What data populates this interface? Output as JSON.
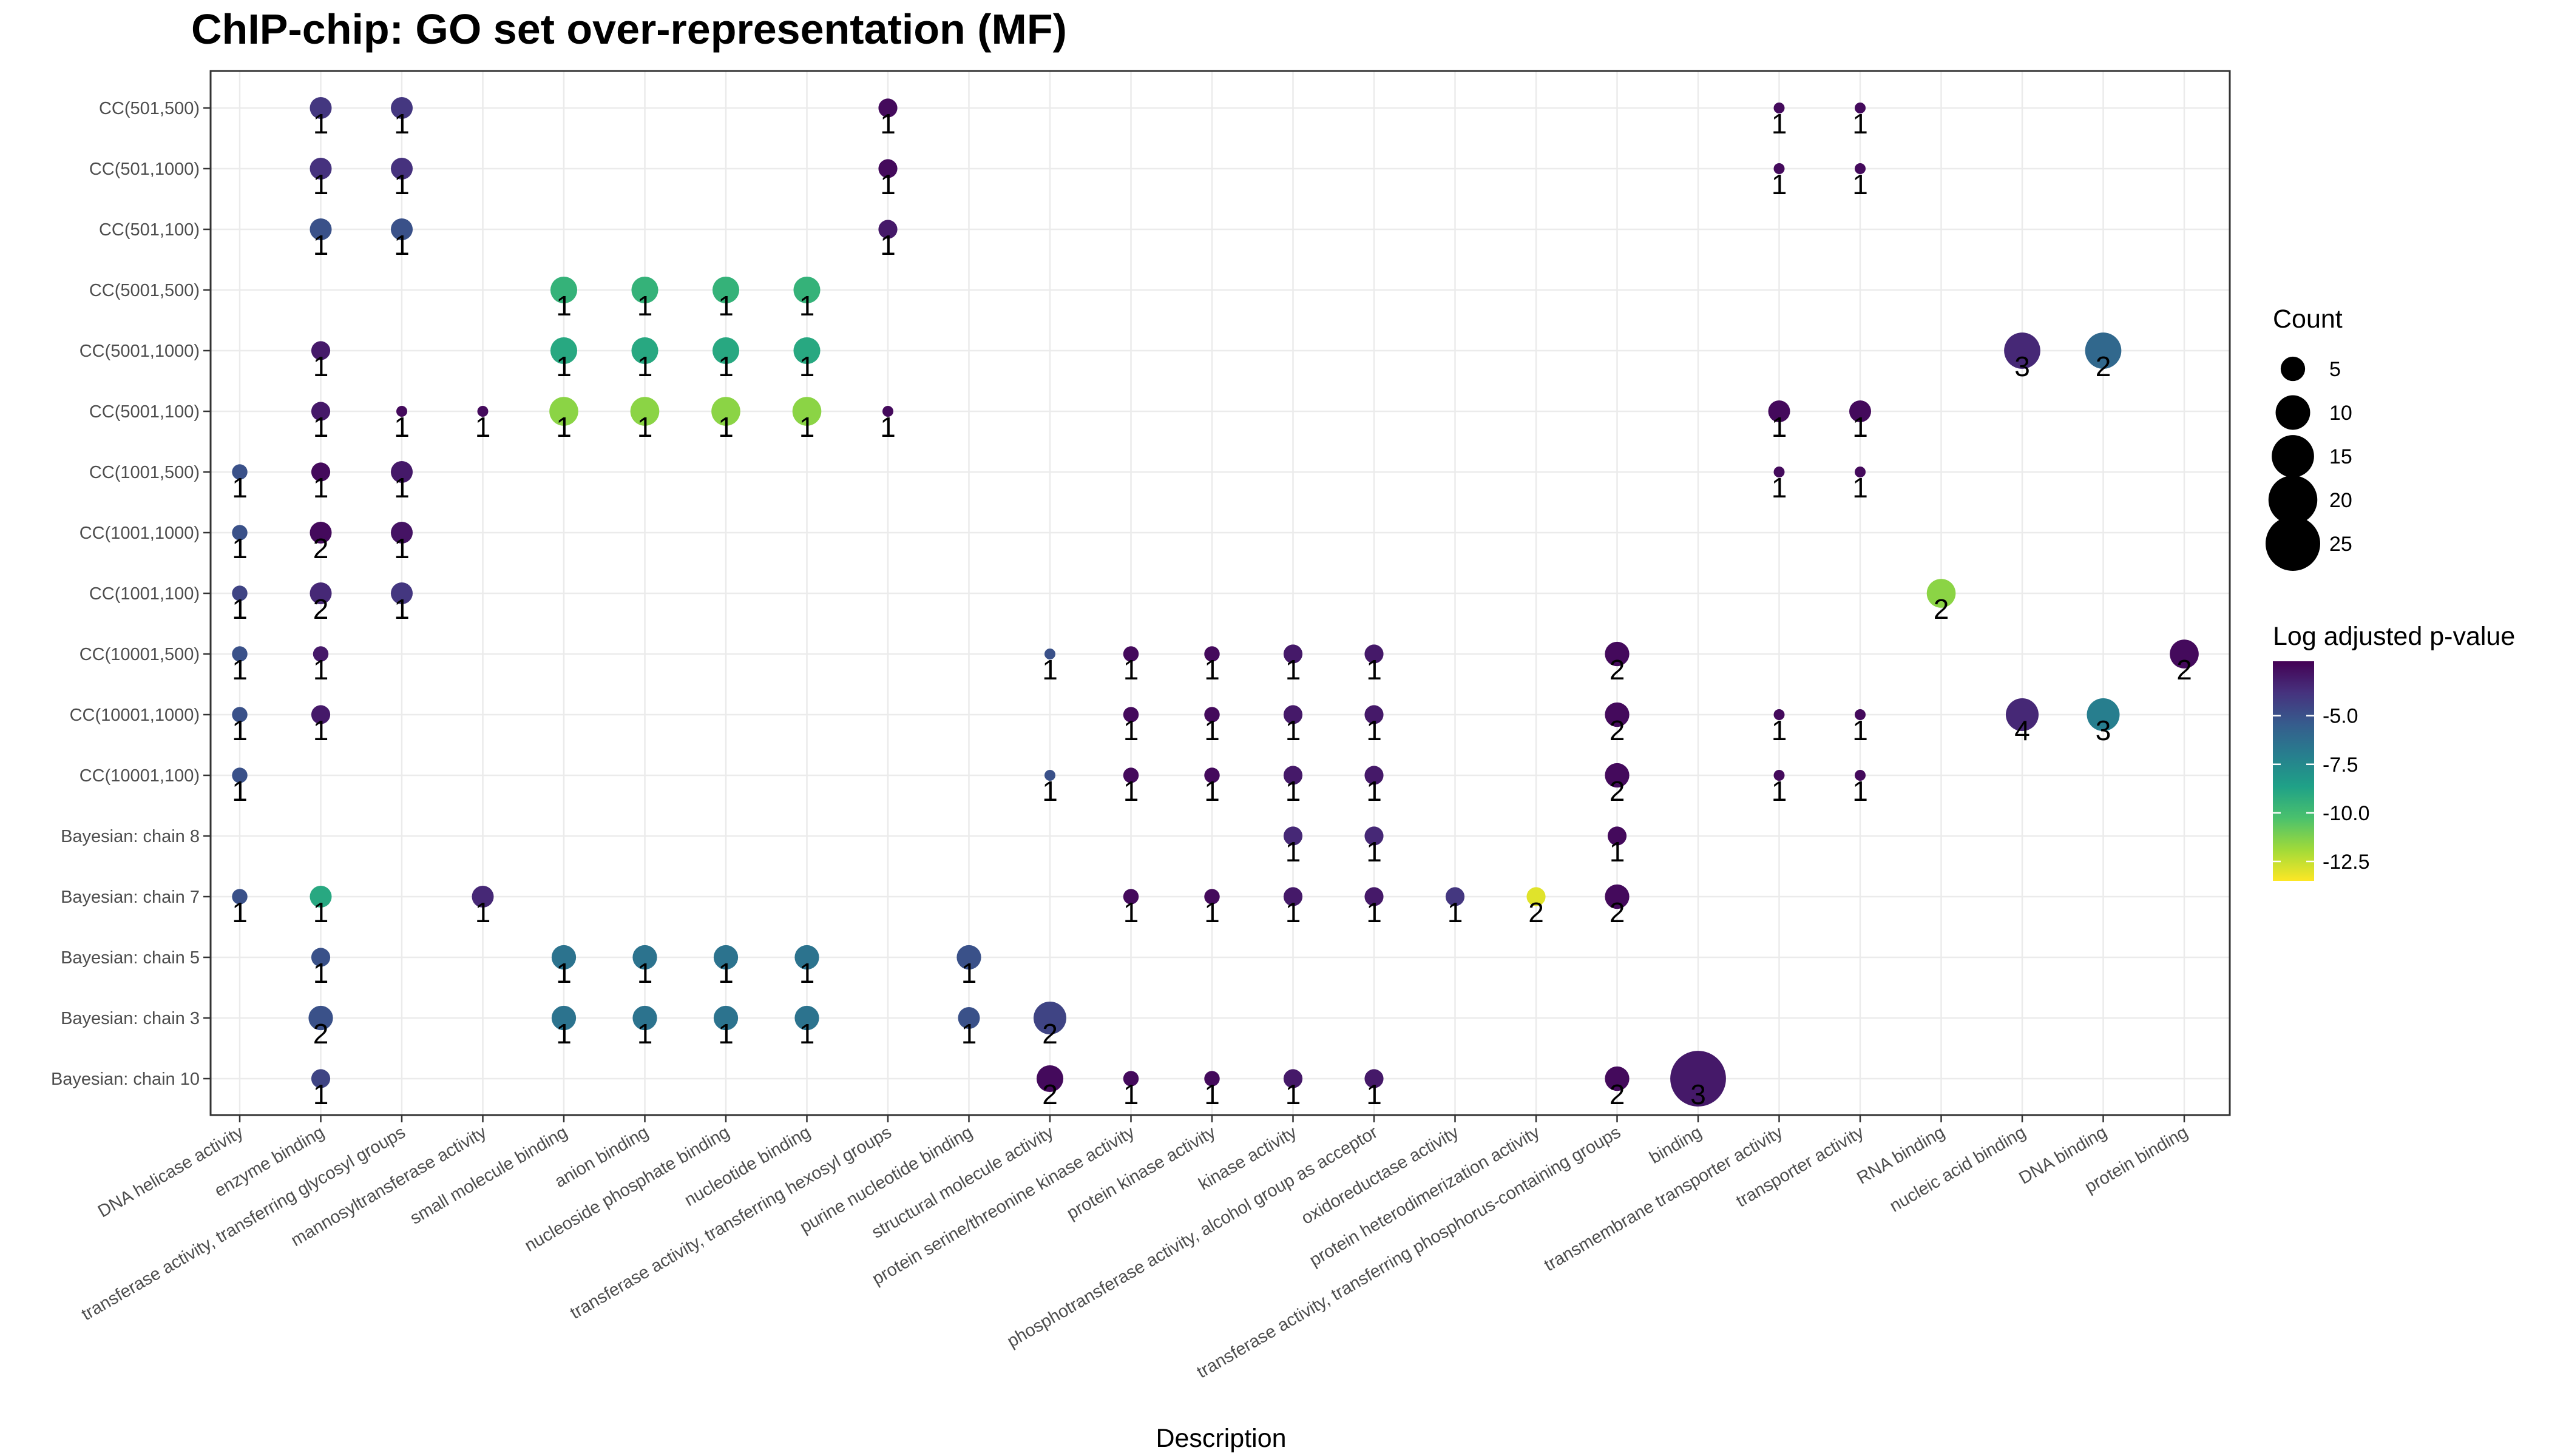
{
  "chart_data": {
    "type": "scatter",
    "title": "ChIP-chip: GO set over-representation (MF)",
    "xlabel": "Description",
    "ylabel": "",
    "x_categories": [
      "DNA helicase activity",
      "enzyme binding",
      "transferase activity, transferring glycosyl groups",
      "mannosyltransferase activity",
      "small molecule binding",
      "anion binding",
      "nucleoside phosphate binding",
      "nucleotide binding",
      "transferase activity, transferring hexosyl groups",
      "purine nucleotide binding",
      "structural molecule activity",
      "protein serine/threonine kinase activity",
      "protein kinase activity",
      "kinase activity",
      "phosphotransferase activity, alcohol group as acceptor",
      "oxidoreductase activity",
      "protein heterodimerization activity",
      "transferase activity, transferring phosphorus-containing groups",
      "binding",
      "transmembrane transporter activity",
      "transporter activity",
      "RNA binding",
      "nucleic acid binding",
      "DNA binding",
      "protein binding"
    ],
    "y_categories": [
      "CC(501,500)",
      "CC(501,1000)",
      "CC(501,100)",
      "CC(5001,500)",
      "CC(5001,1000)",
      "CC(5001,100)",
      "CC(1001,500)",
      "CC(1001,1000)",
      "CC(1001,100)",
      "CC(10001,500)",
      "CC(10001,1000)",
      "CC(10001,100)",
      "Bayesian: chain 8",
      "Bayesian: chain 7",
      "Bayesian: chain 5",
      "Bayesian: chain 3",
      "Bayesian: chain 10"
    ],
    "size_variable": "Count",
    "color_variable": "Log adjusted p-value",
    "size_legend": {
      "title": "Count",
      "values": [
        5,
        10,
        15,
        20,
        25
      ]
    },
    "color_legend": {
      "title": "Log adjusted p-value",
      "range": [
        -13.5,
        -2.2
      ],
      "ticks": [
        -5.0,
        -7.5,
        -10.0,
        -12.5
      ],
      "tick_labels": [
        "-5.0",
        "-7.5",
        "-10.0",
        "-12.5"
      ],
      "palette": [
        "#440154",
        "#46327e",
        "#365c8d",
        "#277f8e",
        "#1fa187",
        "#4ac16d",
        "#a0da39",
        "#fde725"
      ]
    },
    "points": [
      {
        "y": "CC(501,500)",
        "x": "enzyme binding",
        "label": "1",
        "count": 4,
        "logp": -4.0
      },
      {
        "y": "CC(501,500)",
        "x": "transferase activity, transferring glycosyl groups",
        "label": "1",
        "count": 4,
        "logp": -4.0
      },
      {
        "y": "CC(501,500)",
        "x": "transferase activity, transferring hexosyl groups",
        "label": "1",
        "count": 3,
        "logp": -2.5
      },
      {
        "y": "CC(501,500)",
        "x": "transmembrane transporter activity",
        "label": "1",
        "count": 1,
        "logp": -2.5
      },
      {
        "y": "CC(501,500)",
        "x": "transporter activity",
        "label": "1",
        "count": 1,
        "logp": -2.5
      },
      {
        "y": "CC(501,1000)",
        "x": "enzyme binding",
        "label": "1",
        "count": 4,
        "logp": -3.8
      },
      {
        "y": "CC(501,1000)",
        "x": "transferase activity, transferring glycosyl groups",
        "label": "1",
        "count": 4,
        "logp": -3.8
      },
      {
        "y": "CC(501,1000)",
        "x": "transferase activity, transferring hexosyl groups",
        "label": "1",
        "count": 3,
        "logp": -2.5
      },
      {
        "y": "CC(501,1000)",
        "x": "transmembrane transporter activity",
        "label": "1",
        "count": 1,
        "logp": -2.5
      },
      {
        "y": "CC(501,1000)",
        "x": "transporter activity",
        "label": "1",
        "count": 1,
        "logp": -2.5
      },
      {
        "y": "CC(501,100)",
        "x": "enzyme binding",
        "label": "1",
        "count": 4,
        "logp": -5.0
      },
      {
        "y": "CC(501,100)",
        "x": "transferase activity, transferring glycosyl groups",
        "label": "1",
        "count": 4,
        "logp": -5.0
      },
      {
        "y": "CC(501,100)",
        "x": "transferase activity, transferring hexosyl groups",
        "label": "1",
        "count": 3,
        "logp": -3.0
      },
      {
        "y": "CC(5001,500)",
        "x": "small molecule binding",
        "label": "1",
        "count": 6,
        "logp": -9.5
      },
      {
        "y": "CC(5001,500)",
        "x": "anion binding",
        "label": "1",
        "count": 6,
        "logp": -9.5
      },
      {
        "y": "CC(5001,500)",
        "x": "nucleoside phosphate binding",
        "label": "1",
        "count": 6,
        "logp": -9.5
      },
      {
        "y": "CC(5001,500)",
        "x": "nucleotide binding",
        "label": "1",
        "count": 6,
        "logp": -9.5
      },
      {
        "y": "CC(5001,1000)",
        "x": "enzyme binding",
        "label": "1",
        "count": 3,
        "logp": -3.0
      },
      {
        "y": "CC(5001,1000)",
        "x": "small molecule binding",
        "label": "1",
        "count": 6,
        "logp": -9.0
      },
      {
        "y": "CC(5001,1000)",
        "x": "anion binding",
        "label": "1",
        "count": 6,
        "logp": -9.0
      },
      {
        "y": "CC(5001,1000)",
        "x": "nucleoside phosphate binding",
        "label": "1",
        "count": 6,
        "logp": -9.0
      },
      {
        "y": "CC(5001,1000)",
        "x": "nucleotide binding",
        "label": "1",
        "count": 6,
        "logp": -9.0
      },
      {
        "y": "CC(5001,1000)",
        "x": "nucleic acid binding",
        "label": "3",
        "count": 11,
        "logp": -3.5
      },
      {
        "y": "CC(5001,1000)",
        "x": "DNA binding",
        "label": "2",
        "count": 11,
        "logp": -6.0
      },
      {
        "y": "CC(5001,100)",
        "x": "enzyme binding",
        "label": "1",
        "count": 3,
        "logp": -3.0
      },
      {
        "y": "CC(5001,100)",
        "x": "transferase activity, transferring glycosyl groups",
        "label": "1",
        "count": 1,
        "logp": -2.5
      },
      {
        "y": "CC(5001,100)",
        "x": "mannosyltransferase activity",
        "label": "1",
        "count": 1,
        "logp": -2.5
      },
      {
        "y": "CC(5001,100)",
        "x": "small molecule binding",
        "label": "1",
        "count": 7,
        "logp": -11.5
      },
      {
        "y": "CC(5001,100)",
        "x": "anion binding",
        "label": "1",
        "count": 7,
        "logp": -11.5
      },
      {
        "y": "CC(5001,100)",
        "x": "nucleoside phosphate binding",
        "label": "1",
        "count": 7,
        "logp": -11.5
      },
      {
        "y": "CC(5001,100)",
        "x": "nucleotide binding",
        "label": "1",
        "count": 7,
        "logp": -11.5
      },
      {
        "y": "CC(5001,100)",
        "x": "transferase activity, transferring hexosyl groups",
        "label": "1",
        "count": 1,
        "logp": -2.5
      },
      {
        "y": "CC(5001,100)",
        "x": "transmembrane transporter activity",
        "label": "1",
        "count": 4,
        "logp": -2.5
      },
      {
        "y": "CC(5001,100)",
        "x": "transporter activity",
        "label": "1",
        "count": 4,
        "logp": -2.5
      },
      {
        "y": "CC(1001,500)",
        "x": "DNA helicase activity",
        "label": "1",
        "count": 2,
        "logp": -5.0
      },
      {
        "y": "CC(1001,500)",
        "x": "enzyme binding",
        "label": "1",
        "count": 3,
        "logp": -2.5
      },
      {
        "y": "CC(1001,500)",
        "x": "transferase activity, transferring glycosyl groups",
        "label": "1",
        "count": 4,
        "logp": -3.0
      },
      {
        "y": "CC(1001,500)",
        "x": "transmembrane transporter activity",
        "label": "1",
        "count": 1,
        "logp": -2.5
      },
      {
        "y": "CC(1001,500)",
        "x": "transporter activity",
        "label": "1",
        "count": 1,
        "logp": -2.5
      },
      {
        "y": "CC(1001,1000)",
        "x": "DNA helicase activity",
        "label": "1",
        "count": 2,
        "logp": -5.0
      },
      {
        "y": "CC(1001,1000)",
        "x": "enzyme binding",
        "label": "2",
        "count": 4,
        "logp": -2.5
      },
      {
        "y": "CC(1001,1000)",
        "x": "transferase activity, transferring glycosyl groups",
        "label": "1",
        "count": 4,
        "logp": -2.8
      },
      {
        "y": "CC(1001,100)",
        "x": "DNA helicase activity",
        "label": "1",
        "count": 2,
        "logp": -4.5
      },
      {
        "y": "CC(1001,100)",
        "x": "enzyme binding",
        "label": "2",
        "count": 4,
        "logp": -3.5
      },
      {
        "y": "CC(1001,100)",
        "x": "transferase activity, transferring glycosyl groups",
        "label": "1",
        "count": 4,
        "logp": -4.0
      },
      {
        "y": "CC(1001,100)",
        "x": "RNA binding",
        "label": "2",
        "count": 7,
        "logp": -11.5
      },
      {
        "y": "CC(10001,500)",
        "x": "DNA helicase activity",
        "label": "1",
        "count": 2,
        "logp": -5.0
      },
      {
        "y": "CC(10001,500)",
        "x": "enzyme binding",
        "label": "1",
        "count": 2,
        "logp": -3.0
      },
      {
        "y": "CC(10001,500)",
        "x": "structural molecule activity",
        "label": "1",
        "count": 1,
        "logp": -5.0
      },
      {
        "y": "CC(10001,500)",
        "x": "protein serine/threonine kinase activity",
        "label": "1",
        "count": 2,
        "logp": -2.5
      },
      {
        "y": "CC(10001,500)",
        "x": "protein kinase activity",
        "label": "1",
        "count": 2,
        "logp": -2.5
      },
      {
        "y": "CC(10001,500)",
        "x": "kinase activity",
        "label": "1",
        "count": 3,
        "logp": -3.0
      },
      {
        "y": "CC(10001,500)",
        "x": "phosphotransferase activity, alcohol group as acceptor",
        "label": "1",
        "count": 3,
        "logp": -3.0
      },
      {
        "y": "CC(10001,500)",
        "x": "transferase activity, transferring phosphorus-containing groups",
        "label": "2",
        "count": 5,
        "logp": -2.5
      },
      {
        "y": "CC(10001,500)",
        "x": "protein binding",
        "label": "2",
        "count": 7,
        "logp": -2.5
      },
      {
        "y": "CC(10001,1000)",
        "x": "DNA helicase activity",
        "label": "1",
        "count": 2,
        "logp": -5.0
      },
      {
        "y": "CC(10001,1000)",
        "x": "enzyme binding",
        "label": "1",
        "count": 3,
        "logp": -3.0
      },
      {
        "y": "CC(10001,1000)",
        "x": "protein serine/threonine kinase activity",
        "label": "1",
        "count": 2,
        "logp": -2.5
      },
      {
        "y": "CC(10001,1000)",
        "x": "protein kinase activity",
        "label": "1",
        "count": 2,
        "logp": -2.5
      },
      {
        "y": "CC(10001,1000)",
        "x": "kinase activity",
        "label": "1",
        "count": 3,
        "logp": -3.0
      },
      {
        "y": "CC(10001,1000)",
        "x": "phosphotransferase activity, alcohol group as acceptor",
        "label": "1",
        "count": 3,
        "logp": -3.0
      },
      {
        "y": "CC(10001,1000)",
        "x": "transferase activity, transferring phosphorus-containing groups",
        "label": "2",
        "count": 5,
        "logp": -2.5
      },
      {
        "y": "CC(10001,1000)",
        "x": "transmembrane transporter activity",
        "label": "1",
        "count": 1,
        "logp": -2.5
      },
      {
        "y": "CC(10001,1000)",
        "x": "transporter activity",
        "label": "1",
        "count": 1,
        "logp": -2.5
      },
      {
        "y": "CC(10001,1000)",
        "x": "nucleic acid binding",
        "label": "4",
        "count": 9,
        "logp": -3.5
      },
      {
        "y": "CC(10001,1000)",
        "x": "DNA binding",
        "label": "3",
        "count": 9,
        "logp": -7.0
      },
      {
        "y": "CC(10001,100)",
        "x": "DNA helicase activity",
        "label": "1",
        "count": 2,
        "logp": -5.0
      },
      {
        "y": "CC(10001,100)",
        "x": "structural molecule activity",
        "label": "1",
        "count": 1,
        "logp": -5.0
      },
      {
        "y": "CC(10001,100)",
        "x": "protein serine/threonine kinase activity",
        "label": "1",
        "count": 2,
        "logp": -2.5
      },
      {
        "y": "CC(10001,100)",
        "x": "protein kinase activity",
        "label": "1",
        "count": 2,
        "logp": -2.5
      },
      {
        "y": "CC(10001,100)",
        "x": "kinase activity",
        "label": "1",
        "count": 3,
        "logp": -3.0
      },
      {
        "y": "CC(10001,100)",
        "x": "phosphotransferase activity, alcohol group as acceptor",
        "label": "1",
        "count": 3,
        "logp": -3.0
      },
      {
        "y": "CC(10001,100)",
        "x": "transferase activity, transferring phosphorus-containing groups",
        "label": "2",
        "count": 5,
        "logp": -2.5
      },
      {
        "y": "CC(10001,100)",
        "x": "transmembrane transporter activity",
        "label": "1",
        "count": 1,
        "logp": -2.5
      },
      {
        "y": "CC(10001,100)",
        "x": "transporter activity",
        "label": "1",
        "count": 1,
        "logp": -2.5
      },
      {
        "y": "Bayesian: chain 8",
        "x": "kinase activity",
        "label": "1",
        "count": 3,
        "logp": -3.5
      },
      {
        "y": "Bayesian: chain 8",
        "x": "phosphotransferase activity, alcohol group as acceptor",
        "label": "1",
        "count": 3,
        "logp": -3.5
      },
      {
        "y": "Bayesian: chain 8",
        "x": "transferase activity, transferring phosphorus-containing groups",
        "label": "1",
        "count": 3,
        "logp": -2.5
      },
      {
        "y": "Bayesian: chain 7",
        "x": "DNA helicase activity",
        "label": "1",
        "count": 2,
        "logp": -5.0
      },
      {
        "y": "Bayesian: chain 7",
        "x": "enzyme binding",
        "label": "1",
        "count": 4,
        "logp": -9.0
      },
      {
        "y": "Bayesian: chain 7",
        "x": "mannosyltransferase activity",
        "label": "1",
        "count": 4,
        "logp": -3.5
      },
      {
        "y": "Bayesian: chain 7",
        "x": "protein serine/threonine kinase activity",
        "label": "1",
        "count": 2,
        "logp": -2.5
      },
      {
        "y": "Bayesian: chain 7",
        "x": "protein kinase activity",
        "label": "1",
        "count": 2,
        "logp": -2.5
      },
      {
        "y": "Bayesian: chain 7",
        "x": "kinase activity",
        "label": "1",
        "count": 3,
        "logp": -3.0
      },
      {
        "y": "Bayesian: chain 7",
        "x": "phosphotransferase activity, alcohol group as acceptor",
        "label": "1",
        "count": 3,
        "logp": -3.0
      },
      {
        "y": "Bayesian: chain 7",
        "x": "oxidoreductase activity",
        "label": "1",
        "count": 3,
        "logp": -4.0
      },
      {
        "y": "Bayesian: chain 7",
        "x": "protein heterodimerization activity",
        "label": "2",
        "count": 3,
        "logp": -13.0
      },
      {
        "y": "Bayesian: chain 7",
        "x": "transferase activity, transferring phosphorus-containing groups",
        "label": "2",
        "count": 5,
        "logp": -2.5
      },
      {
        "y": "Bayesian: chain 5",
        "x": "enzyme binding",
        "label": "1",
        "count": 3,
        "logp": -5.0
      },
      {
        "y": "Bayesian: chain 5",
        "x": "small molecule binding",
        "label": "1",
        "count": 5,
        "logp": -6.5
      },
      {
        "y": "Bayesian: chain 5",
        "x": "anion binding",
        "label": "1",
        "count": 5,
        "logp": -6.5
      },
      {
        "y": "Bayesian: chain 5",
        "x": "nucleoside phosphate binding",
        "label": "1",
        "count": 5,
        "logp": -6.5
      },
      {
        "y": "Bayesian: chain 5",
        "x": "nucleotide binding",
        "label": "1",
        "count": 5,
        "logp": -6.5
      },
      {
        "y": "Bayesian: chain 5",
        "x": "purine nucleotide binding",
        "label": "1",
        "count": 5,
        "logp": -5.0
      },
      {
        "y": "Bayesian: chain 3",
        "x": "enzyme binding",
        "label": "2",
        "count": 5,
        "logp": -5.0
      },
      {
        "y": "Bayesian: chain 3",
        "x": "small molecule binding",
        "label": "1",
        "count": 5,
        "logp": -6.5
      },
      {
        "y": "Bayesian: chain 3",
        "x": "anion binding",
        "label": "1",
        "count": 5,
        "logp": -6.5
      },
      {
        "y": "Bayesian: chain 3",
        "x": "nucleoside phosphate binding",
        "label": "1",
        "count": 5,
        "logp": -6.5
      },
      {
        "y": "Bayesian: chain 3",
        "x": "nucleotide binding",
        "label": "1",
        "count": 5,
        "logp": -6.5
      },
      {
        "y": "Bayesian: chain 3",
        "x": "purine nucleotide binding",
        "label": "1",
        "count": 4,
        "logp": -5.0
      },
      {
        "y": "Bayesian: chain 3",
        "x": "structural molecule activity",
        "label": "2",
        "count": 9,
        "logp": -4.5
      },
      {
        "y": "Bayesian: chain 10",
        "x": "enzyme binding",
        "label": "1",
        "count": 3,
        "logp": -4.5
      },
      {
        "y": "Bayesian: chain 10",
        "x": "structural molecule activity",
        "label": "2",
        "count": 6,
        "logp": -2.5
      },
      {
        "y": "Bayesian: chain 10",
        "x": "protein serine/threonine kinase activity",
        "label": "1",
        "count": 2,
        "logp": -2.5
      },
      {
        "y": "Bayesian: chain 10",
        "x": "protein kinase activity",
        "label": "1",
        "count": 2,
        "logp": -2.5
      },
      {
        "y": "Bayesian: chain 10",
        "x": "kinase activity",
        "label": "1",
        "count": 3,
        "logp": -3.0
      },
      {
        "y": "Bayesian: chain 10",
        "x": "phosphotransferase activity, alcohol group as acceptor",
        "label": "1",
        "count": 3,
        "logp": -3.0
      },
      {
        "y": "Bayesian: chain 10",
        "x": "transferase activity, transferring phosphorus-containing groups",
        "label": "2",
        "count": 5,
        "logp": -2.5
      },
      {
        "y": "Bayesian: chain 10",
        "x": "binding",
        "label": "3",
        "count": 26,
        "logp": -3.0
      }
    ],
    "grid": true,
    "legend_position": "right"
  }
}
